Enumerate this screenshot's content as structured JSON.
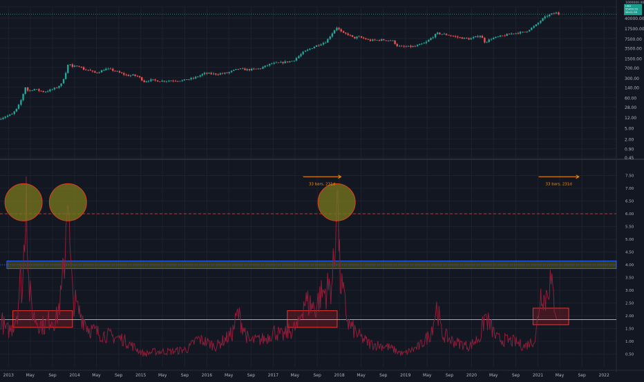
{
  "colors": {
    "background": "#131722",
    "grid": "#1e222d",
    "axis_text": "#b2b5be",
    "candle_up": "#26a69a",
    "candle_down": "#ef5350",
    "indicator_line": "#8e1f3a",
    "hline_red_dashed": "#c0392b",
    "hline_orange": "#f7a21b",
    "hline_blue": "#2962ff",
    "circle_fill": "#7a7a1e",
    "circle_stroke": "#e0401d",
    "rect_stroke": "#e53935",
    "rect_fill": "#7a1a24",
    "annotation": "#f7931a",
    "price_tag": "#1a9e8f"
  },
  "price_tag": {
    "lines": [
      "1000000.00",
      "USD",
      "55455.55",
      "56:01:59"
    ]
  },
  "chart_data": [
    {
      "type": "line",
      "subtype": "candlestick",
      "y_scale": "log",
      "ylim": [
        0.45,
        100000
      ],
      "x_range": [
        "2012-11-15",
        "2022-03-10"
      ],
      "yticks": [
        "0.45",
        "0.90",
        "2.00",
        "5.00",
        "12.00",
        "28.00",
        "60.00",
        "140.00",
        "300.00",
        "700.00",
        "1500.00",
        "3500.00",
        "7500.00",
        "17500.00",
        "40000.00",
        "100000.00"
      ],
      "x": [
        "2012-11-20",
        "2012-12-20",
        "2013-01-20",
        "2013-02-20",
        "2013-03-10",
        "2013-04-05",
        "2013-04-20",
        "2013-05-20",
        "2013-06-20",
        "2013-07-20",
        "2013-08-20",
        "2013-09-20",
        "2013-10-20",
        "2013-11-10",
        "2013-11-30",
        "2013-12-20",
        "2014-01-20",
        "2014-02-20",
        "2014-03-20",
        "2014-04-20",
        "2014-05-20",
        "2014-06-20",
        "2014-07-20",
        "2014-08-20",
        "2014-09-20",
        "2014-10-20",
        "2014-11-20",
        "2014-12-20",
        "2015-01-20",
        "2015-02-20",
        "2015-04-20",
        "2015-06-20",
        "2015-08-20",
        "2015-10-20",
        "2015-12-20",
        "2016-02-20",
        "2016-04-20",
        "2016-06-20",
        "2016-08-20",
        "2016-10-20",
        "2016-12-20",
        "2017-02-20",
        "2017-04-20",
        "2017-06-20",
        "2017-08-20",
        "2017-10-20",
        "2017-12-17",
        "2018-01-20",
        "2018-02-20",
        "2018-03-20",
        "2018-04-20",
        "2018-06-20",
        "2018-08-20",
        "2018-10-20",
        "2018-11-20",
        "2018-12-20",
        "2019-02-20",
        "2019-04-20",
        "2019-06-25",
        "2019-08-20",
        "2019-10-20",
        "2019-12-20",
        "2020-02-20",
        "2020-03-15",
        "2020-04-20",
        "2020-06-20",
        "2020-08-20",
        "2020-10-20",
        "2020-12-20",
        "2021-01-20",
        "2021-02-20",
        "2021-03-20",
        "2021-04-15",
        "2021-04-25"
      ],
      "values": [
        11,
        13,
        15,
        25,
        45,
        140,
        100,
        120,
        105,
        95,
        110,
        130,
        180,
        400,
        1050,
        700,
        850,
        600,
        570,
        450,
        500,
        620,
        590,
        500,
        420,
        360,
        370,
        330,
        220,
        250,
        230,
        240,
        240,
        290,
        430,
        410,
        440,
        620,
        580,
        640,
        950,
        1050,
        1200,
        2500,
        4000,
        5800,
        19000,
        11500,
        10500,
        7800,
        8500,
        6400,
        6700,
        6400,
        4000,
        3800,
        3900,
        5200,
        11500,
        10200,
        8200,
        7200,
        9700,
        5500,
        7500,
        9300,
        11700,
        12500,
        22000,
        34000,
        48000,
        56000,
        62000,
        55000
      ]
    },
    {
      "type": "line",
      "name": "",
      "ylim": [
        0,
        8.0
      ],
      "yticks": [
        "0.50",
        "1.00",
        "1.50",
        "2.00",
        "2.50",
        "3.00",
        "3.50",
        "4.00",
        "4.50",
        "5.00",
        "5.50",
        "6.00",
        "6.50",
        "7.00",
        "7.50"
      ],
      "x": [
        "2012-11-20",
        "2012-12-20",
        "2013-01-20",
        "2013-02-20",
        "2013-03-10",
        "2013-03-20",
        "2013-04-05",
        "2013-04-10",
        "2013-04-20",
        "2013-05-05",
        "2013-05-20",
        "2013-06-20",
        "2013-07-20",
        "2013-08-20",
        "2013-09-20",
        "2013-10-20",
        "2013-11-10",
        "2013-11-25",
        "2013-11-30",
        "2013-12-10",
        "2013-12-20",
        "2014-01-20",
        "2014-02-20",
        "2014-03-20",
        "2014-05-20",
        "2014-07-20",
        "2014-09-20",
        "2014-11-20",
        "2015-01-20",
        "2015-03-20",
        "2015-06-20",
        "2015-09-20",
        "2015-11-10",
        "2015-12-20",
        "2016-02-20",
        "2016-05-20",
        "2016-06-20",
        "2016-08-20",
        "2016-11-20",
        "2017-01-05",
        "2017-02-20",
        "2017-05-20",
        "2017-06-20",
        "2017-08-20",
        "2017-09-20",
        "2017-11-20",
        "2017-12-10",
        "2017-12-17",
        "2018-01-05",
        "2018-02-20",
        "2018-04-20",
        "2018-06-20",
        "2018-09-20",
        "2018-12-20",
        "2019-03-20",
        "2019-05-20",
        "2019-06-25",
        "2019-07-20",
        "2019-09-20",
        "2019-12-20",
        "2020-02-20",
        "2020-03-15",
        "2020-05-20",
        "2020-08-20",
        "2020-10-20",
        "2020-12-20",
        "2021-01-10",
        "2021-01-25",
        "2021-02-10",
        "2021-02-25",
        "2021-03-10",
        "2021-03-25",
        "2021-04-15"
      ],
      "values": [
        1.9,
        1.4,
        1.5,
        2.2,
        3.5,
        2.8,
        6.5,
        8.0,
        3.5,
        2.5,
        2.0,
        1.7,
        1.6,
        1.9,
        1.8,
        2.8,
        4.5,
        8.0,
        5.5,
        4.0,
        2.8,
        2.2,
        1.9,
        1.5,
        1.3,
        1.2,
        1.1,
        0.8,
        0.5,
        0.6,
        0.6,
        0.7,
        1.1,
        1.0,
        0.8,
        1.3,
        2.1,
        1.0,
        1.1,
        1.4,
        1.2,
        1.6,
        2.6,
        2.3,
        2.8,
        3.2,
        4.5,
        8.0,
        3.5,
        1.7,
        1.2,
        0.9,
        0.8,
        0.5,
        0.8,
        1.3,
        2.4,
        1.3,
        1.0,
        0.8,
        1.2,
        2.0,
        1.1,
        1.0,
        0.8,
        1.1,
        2.6,
        3.1,
        2.5,
        3.2,
        3.4,
        2.8,
        2.2
      ]
    }
  ],
  "indicator_lines": [
    {
      "y": 6.0,
      "style": "dashed",
      "color_key": "hline_red_dashed"
    },
    {
      "y": 4.0,
      "style": "dotted",
      "color_key": "hline_blue"
    },
    {
      "y": 1.85,
      "style": "solid",
      "color_key": "hline_orange"
    },
    {
      "y": 0.5,
      "style": "dotted",
      "color_key": "grid"
    },
    {
      "y": 0.35,
      "style": "dotted",
      "color_key": "grid"
    }
  ],
  "zones": [
    {
      "label": "top-band",
      "x0": "2012-11-15",
      "x1": "2022-03-10",
      "y0": 3.85,
      "y1": 4.15,
      "kind": "band"
    },
    {
      "label": "box-1",
      "x0": "2013-01-25",
      "x1": "2013-12-20",
      "y0": 1.55,
      "y1": 2.2,
      "kind": "rect"
    },
    {
      "label": "box-2",
      "x0": "2017-03-20",
      "x1": "2017-12-20",
      "y0": 1.55,
      "y1": 2.2,
      "kind": "rect"
    },
    {
      "label": "box-3",
      "x0": "2020-12-05",
      "x1": "2021-06-20",
      "y0": 1.65,
      "y1": 2.3,
      "kind": "rect"
    }
  ],
  "circles": [
    {
      "x": "2013-03-25",
      "y": 6.45
    },
    {
      "x": "2013-11-25",
      "y": 6.45
    },
    {
      "x": "2017-12-17",
      "y": 6.45
    }
  ],
  "annotations": [
    {
      "text": "33 bars, 231d",
      "x0": "2017-06-15",
      "x1": "2018-01-10",
      "y": 7.45
    },
    {
      "text": "33 bars, 231d",
      "x0": "2021-01-05",
      "x1": "2021-08-15",
      "y": 7.45
    }
  ],
  "x_axis": {
    "ticks": [
      {
        "label": "2013",
        "date": "2013-01-01"
      },
      {
        "label": "May",
        "date": "2013-05-01"
      },
      {
        "label": "Sep",
        "date": "2013-09-01"
      },
      {
        "label": "2014",
        "date": "2014-01-01"
      },
      {
        "label": "May",
        "date": "2014-05-01"
      },
      {
        "label": "Sep",
        "date": "2014-09-01"
      },
      {
        "label": "2015",
        "date": "2015-01-01"
      },
      {
        "label": "May",
        "date": "2015-05-01"
      },
      {
        "label": "Sep",
        "date": "2015-09-01"
      },
      {
        "label": "2016",
        "date": "2016-01-01"
      },
      {
        "label": "May",
        "date": "2016-05-01"
      },
      {
        "label": "Sep",
        "date": "2016-09-01"
      },
      {
        "label": "2017",
        "date": "2017-01-01"
      },
      {
        "label": "May",
        "date": "2017-05-01"
      },
      {
        "label": "Sep",
        "date": "2017-09-01"
      },
      {
        "label": "2018",
        "date": "2018-01-01"
      },
      {
        "label": "May",
        "date": "2018-05-01"
      },
      {
        "label": "Sep",
        "date": "2018-09-01"
      },
      {
        "label": "2019",
        "date": "2019-01-01"
      },
      {
        "label": "May",
        "date": "2019-05-01"
      },
      {
        "label": "Sep",
        "date": "2019-09-01"
      },
      {
        "label": "2020",
        "date": "2020-01-01"
      },
      {
        "label": "May",
        "date": "2020-05-01"
      },
      {
        "label": "Sep",
        "date": "2020-09-01"
      },
      {
        "label": "2021",
        "date": "2021-01-01"
      },
      {
        "label": "May",
        "date": "2021-05-01"
      },
      {
        "label": "Sep",
        "date": "2021-09-01"
      },
      {
        "label": "2022",
        "date": "2022-01-01"
      }
    ]
  }
}
